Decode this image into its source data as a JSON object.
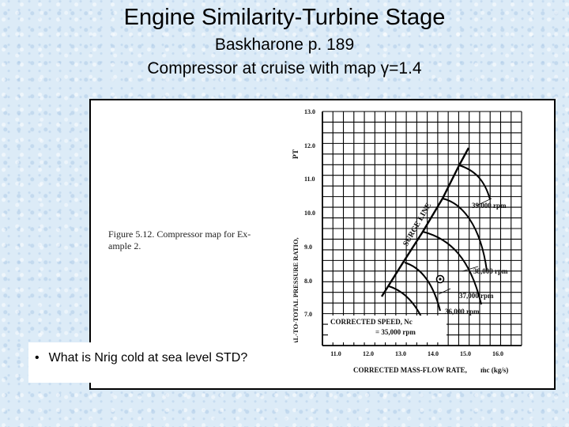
{
  "slide": {
    "title": "Engine Similarity-Turbine Stage",
    "subtitle_1": "Baskharone p. 189",
    "subtitle_2": "Compressor at cruise with map γ=1.4",
    "bullet": "What is Nrig cold at sea level STD?"
  },
  "figure": {
    "caption_line1": "Figure 5.12.  Compressor map for Ex-",
    "caption_line2": "ample 2.",
    "y_axis_label": "TOTAL-TO-TOTAL PRESSURE RATIO,",
    "y_axis_symbol": "PT",
    "x_axis_label": "CORRECTED MASS-FLOW RATE,",
    "x_axis_symbol": "ṁc (kg/s)",
    "y_ticks": [
      "13.0",
      "12.0",
      "11.0",
      "10.0",
      "9.0",
      "8.0",
      "7.0"
    ],
    "x_ticks": [
      "11.0",
      "12.0",
      "13.0",
      "14.0",
      "15.0",
      "16.0"
    ],
    "surge_label": "SURGE LINE",
    "speed_title_line1": "CORRECTED SPEED, Nc",
    "speed_title_line2": "= 35,000 rpm",
    "speed_labels": [
      "39,000 rpm",
      "38,000 rpm",
      "37,000 rpm",
      "36,000 rpm"
    ],
    "grid": true
  }
}
